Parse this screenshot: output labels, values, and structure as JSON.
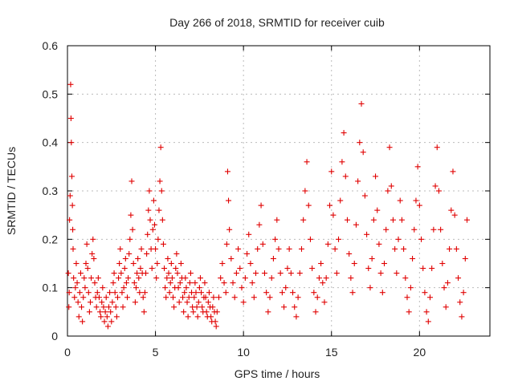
{
  "chart_data": {
    "type": "scatter",
    "title": "Day 266 of 2018, SRMTID for receiver cuib",
    "xlabel": "GPS time / hours",
    "ylabel": "SRMTID / TECUs",
    "xlim": [
      0,
      24
    ],
    "ylim": [
      0,
      0.6
    ],
    "xticks": [
      0,
      5,
      10,
      15,
      20
    ],
    "yticks": [
      0,
      0.1,
      0.2,
      0.3,
      0.4,
      0.5,
      0.6
    ],
    "xtick_labels": [
      "0",
      "5",
      "10",
      "15",
      "20"
    ],
    "ytick_labels": [
      "0",
      "0.1",
      "0.2",
      "0.3",
      "0.4",
      "0.5",
      "0.6"
    ],
    "grid": true,
    "marker": "+",
    "color": "#e00000",
    "series": [
      {
        "name": "cuib",
        "points": [
          [
            0.05,
            0.13
          ],
          [
            0.08,
            0.06
          ],
          [
            0.1,
            0.09
          ],
          [
            0.12,
            0.24
          ],
          [
            0.15,
            0.29
          ],
          [
            0.18,
            0.52
          ],
          [
            0.2,
            0.45
          ],
          [
            0.22,
            0.4
          ],
          [
            0.25,
            0.33
          ],
          [
            0.28,
            0.27
          ],
          [
            0.3,
            0.22
          ],
          [
            0.32,
            0.18
          ],
          [
            0.35,
            0.12
          ],
          [
            0.4,
            0.08
          ],
          [
            0.45,
            0.1
          ],
          [
            0.5,
            0.15
          ],
          [
            0.55,
            0.11
          ],
          [
            0.6,
            0.07
          ],
          [
            0.65,
            0.04
          ],
          [
            0.7,
            0.09
          ],
          [
            0.75,
            0.13
          ],
          [
            0.8,
            0.06
          ],
          [
            0.85,
            0.03
          ],
          [
            0.9,
            0.08
          ],
          [
            0.95,
            0.12
          ],
          [
            1.0,
            0.1
          ],
          [
            1.05,
            0.15
          ],
          [
            1.1,
            0.19
          ],
          [
            1.15,
            0.14
          ],
          [
            1.2,
            0.09
          ],
          [
            1.25,
            0.05
          ],
          [
            1.3,
            0.07
          ],
          [
            1.35,
            0.12
          ],
          [
            1.4,
            0.17
          ],
          [
            1.45,
            0.2
          ],
          [
            1.5,
            0.16
          ],
          [
            1.55,
            0.11
          ],
          [
            1.6,
            0.08
          ],
          [
            1.65,
            0.06
          ],
          [
            1.7,
            0.09
          ],
          [
            1.75,
            0.12
          ],
          [
            1.8,
            0.08
          ],
          [
            1.85,
            0.05
          ],
          [
            1.9,
            0.04
          ],
          [
            1.95,
            0.07
          ],
          [
            2.0,
            0.1
          ],
          [
            2.05,
            0.06
          ],
          [
            2.1,
            0.03
          ],
          [
            2.15,
            0.05
          ],
          [
            2.2,
            0.08
          ],
          [
            2.25,
            0.04
          ],
          [
            2.3,
            0.02
          ],
          [
            2.35,
            0.06
          ],
          [
            2.4,
            0.09
          ],
          [
            2.45,
            0.05
          ],
          [
            2.5,
            0.03
          ],
          [
            2.55,
            0.07
          ],
          [
            2.6,
            0.11
          ],
          [
            2.65,
            0.13
          ],
          [
            2.7,
            0.09
          ],
          [
            2.75,
            0.06
          ],
          [
            2.8,
            0.04
          ],
          [
            2.85,
            0.08
          ],
          [
            2.9,
            0.12
          ],
          [
            2.95,
            0.15
          ],
          [
            3.0,
            0.18
          ],
          [
            3.05,
            0.13
          ],
          [
            3.1,
            0.09
          ],
          [
            3.15,
            0.06
          ],
          [
            3.2,
            0.1
          ],
          [
            3.25,
            0.14
          ],
          [
            3.3,
            0.16
          ],
          [
            3.35,
            0.11
          ],
          [
            3.4,
            0.08
          ],
          [
            3.45,
            0.12
          ],
          [
            3.5,
            0.17
          ],
          [
            3.55,
            0.2
          ],
          [
            3.6,
            0.25
          ],
          [
            3.65,
            0.32
          ],
          [
            3.7,
            0.22
          ],
          [
            3.75,
            0.15
          ],
          [
            3.8,
            0.11
          ],
          [
            3.85,
            0.07
          ],
          [
            3.9,
            0.1
          ],
          [
            3.95,
            0.13
          ],
          [
            4.0,
            0.16
          ],
          [
            4.05,
            0.12
          ],
          [
            4.1,
            0.09
          ],
          [
            4.15,
            0.14
          ],
          [
            4.2,
            0.18
          ],
          [
            4.25,
            0.13
          ],
          [
            4.3,
            0.08
          ],
          [
            4.35,
            0.05
          ],
          [
            4.4,
            0.09
          ],
          [
            4.45,
            0.13
          ],
          [
            4.5,
            0.17
          ],
          [
            4.55,
            0.21
          ],
          [
            4.6,
            0.26
          ],
          [
            4.65,
            0.3
          ],
          [
            4.7,
            0.24
          ],
          [
            4.75,
            0.18
          ],
          [
            4.8,
            0.14
          ],
          [
            4.85,
            0.22
          ],
          [
            4.9,
            0.28
          ],
          [
            4.95,
            0.23
          ],
          [
            5.0,
            0.18
          ],
          [
            5.05,
            0.12
          ],
          [
            5.1,
            0.15
          ],
          [
            5.15,
            0.2
          ],
          [
            5.2,
            0.26
          ],
          [
            5.25,
            0.32
          ],
          [
            5.3,
            0.39
          ],
          [
            5.35,
            0.3
          ],
          [
            5.4,
            0.24
          ],
          [
            5.45,
            0.19
          ],
          [
            5.5,
            0.14
          ],
          [
            5.55,
            0.1
          ],
          [
            5.6,
            0.08
          ],
          [
            5.65,
            0.12
          ],
          [
            5.7,
            0.16
          ],
          [
            5.75,
            0.13
          ],
          [
            5.8,
            0.09
          ],
          [
            5.85,
            0.11
          ],
          [
            5.9,
            0.15
          ],
          [
            5.95,
            0.12
          ],
          [
            6.0,
            0.08
          ],
          [
            6.05,
            0.06
          ],
          [
            6.1,
            0.1
          ],
          [
            6.15,
            0.14
          ],
          [
            6.2,
            0.17
          ],
          [
            6.25,
            0.13
          ],
          [
            6.3,
            0.1
          ],
          [
            6.35,
            0.07
          ],
          [
            6.4,
            0.11
          ],
          [
            6.45,
            0.15
          ],
          [
            6.5,
            0.12
          ],
          [
            6.55,
            0.08
          ],
          [
            6.6,
            0.05
          ],
          [
            6.65,
            0.09
          ],
          [
            6.7,
            0.12
          ],
          [
            6.75,
            0.1
          ],
          [
            6.8,
            0.07
          ],
          [
            6.85,
            0.04
          ],
          [
            6.9,
            0.08
          ],
          [
            6.95,
            0.11
          ],
          [
            7.0,
            0.13
          ],
          [
            7.05,
            0.09
          ],
          [
            7.1,
            0.06
          ],
          [
            7.15,
            0.05
          ],
          [
            7.2,
            0.08
          ],
          [
            7.25,
            0.11
          ],
          [
            7.3,
            0.09
          ],
          [
            7.35,
            0.06
          ],
          [
            7.4,
            0.04
          ],
          [
            7.45,
            0.07
          ],
          [
            7.5,
            0.1
          ],
          [
            7.55,
            0.12
          ],
          [
            7.6,
            0.09
          ],
          [
            7.65,
            0.06
          ],
          [
            7.7,
            0.05
          ],
          [
            7.75,
            0.08
          ],
          [
            7.8,
            0.11
          ],
          [
            7.85,
            0.08
          ],
          [
            7.9,
            0.05
          ],
          [
            7.95,
            0.04
          ],
          [
            8.0,
            0.07
          ],
          [
            8.05,
            0.09
          ],
          [
            8.1,
            0.06
          ],
          [
            8.15,
            0.04
          ],
          [
            8.2,
            0.03
          ],
          [
            8.25,
            0.06
          ],
          [
            8.3,
            0.08
          ],
          [
            8.35,
            0.05
          ],
          [
            8.4,
            0.03
          ],
          [
            8.45,
            0.02
          ],
          [
            8.5,
            0.05
          ],
          [
            8.6,
            0.08
          ],
          [
            8.7,
            0.12
          ],
          [
            8.8,
            0.15
          ],
          [
            8.9,
            0.11
          ],
          [
            9.0,
            0.09
          ],
          [
            9.05,
            0.19
          ],
          [
            9.1,
            0.34
          ],
          [
            9.15,
            0.28
          ],
          [
            9.2,
            0.22
          ],
          [
            9.3,
            0.16
          ],
          [
            9.4,
            0.11
          ],
          [
            9.5,
            0.08
          ],
          [
            9.6,
            0.13
          ],
          [
            9.7,
            0.18
          ],
          [
            9.8,
            0.14
          ],
          [
            9.9,
            0.1
          ],
          [
            10.0,
            0.07
          ],
          [
            10.1,
            0.12
          ],
          [
            10.2,
            0.17
          ],
          [
            10.3,
            0.21
          ],
          [
            10.4,
            0.15
          ],
          [
            10.5,
            0.11
          ],
          [
            10.6,
            0.08
          ],
          [
            10.7,
            0.13
          ],
          [
            10.8,
            0.18
          ],
          [
            10.9,
            0.23
          ],
          [
            11.0,
            0.27
          ],
          [
            11.1,
            0.19
          ],
          [
            11.2,
            0.13
          ],
          [
            11.3,
            0.09
          ],
          [
            11.4,
            0.05
          ],
          [
            11.5,
            0.08
          ],
          [
            11.6,
            0.12
          ],
          [
            11.7,
            0.16
          ],
          [
            11.8,
            0.2
          ],
          [
            11.9,
            0.24
          ],
          [
            12.0,
            0.18
          ],
          [
            12.1,
            0.13
          ],
          [
            12.2,
            0.09
          ],
          [
            12.3,
            0.06
          ],
          [
            12.4,
            0.1
          ],
          [
            12.5,
            0.14
          ],
          [
            12.6,
            0.18
          ],
          [
            12.7,
            0.13
          ],
          [
            12.8,
            0.09
          ],
          [
            12.9,
            0.06
          ],
          [
            13.0,
            0.04
          ],
          [
            13.1,
            0.08
          ],
          [
            13.2,
            0.13
          ],
          [
            13.3,
            0.18
          ],
          [
            13.4,
            0.24
          ],
          [
            13.5,
            0.3
          ],
          [
            13.6,
            0.36
          ],
          [
            13.7,
            0.27
          ],
          [
            13.8,
            0.2
          ],
          [
            13.9,
            0.14
          ],
          [
            14.0,
            0.09
          ],
          [
            14.1,
            0.05
          ],
          [
            14.2,
            0.08
          ],
          [
            14.3,
            0.12
          ],
          [
            14.4,
            0.15
          ],
          [
            14.5,
            0.11
          ],
          [
            14.6,
            0.07
          ],
          [
            14.7,
            0.12
          ],
          [
            14.8,
            0.19
          ],
          [
            14.9,
            0.27
          ],
          [
            15.0,
            0.34
          ],
          [
            15.1,
            0.25
          ],
          [
            15.2,
            0.18
          ],
          [
            15.3,
            0.13
          ],
          [
            15.4,
            0.2
          ],
          [
            15.5,
            0.28
          ],
          [
            15.6,
            0.36
          ],
          [
            15.7,
            0.42
          ],
          [
            15.8,
            0.33
          ],
          [
            15.9,
            0.24
          ],
          [
            16.0,
            0.17
          ],
          [
            16.1,
            0.12
          ],
          [
            16.2,
            0.09
          ],
          [
            16.3,
            0.15
          ],
          [
            16.4,
            0.23
          ],
          [
            16.5,
            0.32
          ],
          [
            16.6,
            0.4
          ],
          [
            16.7,
            0.48
          ],
          [
            16.8,
            0.38
          ],
          [
            16.9,
            0.29
          ],
          [
            17.0,
            0.21
          ],
          [
            17.1,
            0.14
          ],
          [
            17.2,
            0.1
          ],
          [
            17.3,
            0.16
          ],
          [
            17.4,
            0.24
          ],
          [
            17.5,
            0.33
          ],
          [
            17.6,
            0.26
          ],
          [
            17.7,
            0.19
          ],
          [
            17.8,
            0.13
          ],
          [
            17.9,
            0.09
          ],
          [
            18.0,
            0.15
          ],
          [
            18.1,
            0.22
          ],
          [
            18.2,
            0.3
          ],
          [
            18.3,
            0.39
          ],
          [
            18.4,
            0.31
          ],
          [
            18.5,
            0.24
          ],
          [
            18.6,
            0.18
          ],
          [
            18.7,
            0.13
          ],
          [
            18.8,
            0.2
          ],
          [
            18.9,
            0.28
          ],
          [
            19.0,
            0.24
          ],
          [
            19.1,
            0.18
          ],
          [
            19.2,
            0.12
          ],
          [
            19.3,
            0.08
          ],
          [
            19.4,
            0.05
          ],
          [
            19.5,
            0.1
          ],
          [
            19.6,
            0.16
          ],
          [
            19.7,
            0.22
          ],
          [
            19.8,
            0.28
          ],
          [
            19.9,
            0.35
          ],
          [
            20.0,
            0.27
          ],
          [
            20.1,
            0.2
          ],
          [
            20.2,
            0.14
          ],
          [
            20.3,
            0.09
          ],
          [
            20.4,
            0.05
          ],
          [
            20.5,
            0.03
          ],
          [
            20.6,
            0.08
          ],
          [
            20.7,
            0.14
          ],
          [
            20.8,
            0.22
          ],
          [
            20.9,
            0.31
          ],
          [
            21.0,
            0.39
          ],
          [
            21.1,
            0.3
          ],
          [
            21.2,
            0.22
          ],
          [
            21.3,
            0.15
          ],
          [
            21.4,
            0.1
          ],
          [
            21.5,
            0.06
          ],
          [
            21.6,
            0.11
          ],
          [
            21.7,
            0.18
          ],
          [
            21.8,
            0.26
          ],
          [
            21.9,
            0.34
          ],
          [
            22.0,
            0.25
          ],
          [
            22.1,
            0.18
          ],
          [
            22.2,
            0.12
          ],
          [
            22.3,
            0.07
          ],
          [
            22.4,
            0.04
          ],
          [
            22.5,
            0.09
          ],
          [
            22.6,
            0.16
          ],
          [
            22.7,
            0.24
          ]
        ]
      }
    ]
  }
}
